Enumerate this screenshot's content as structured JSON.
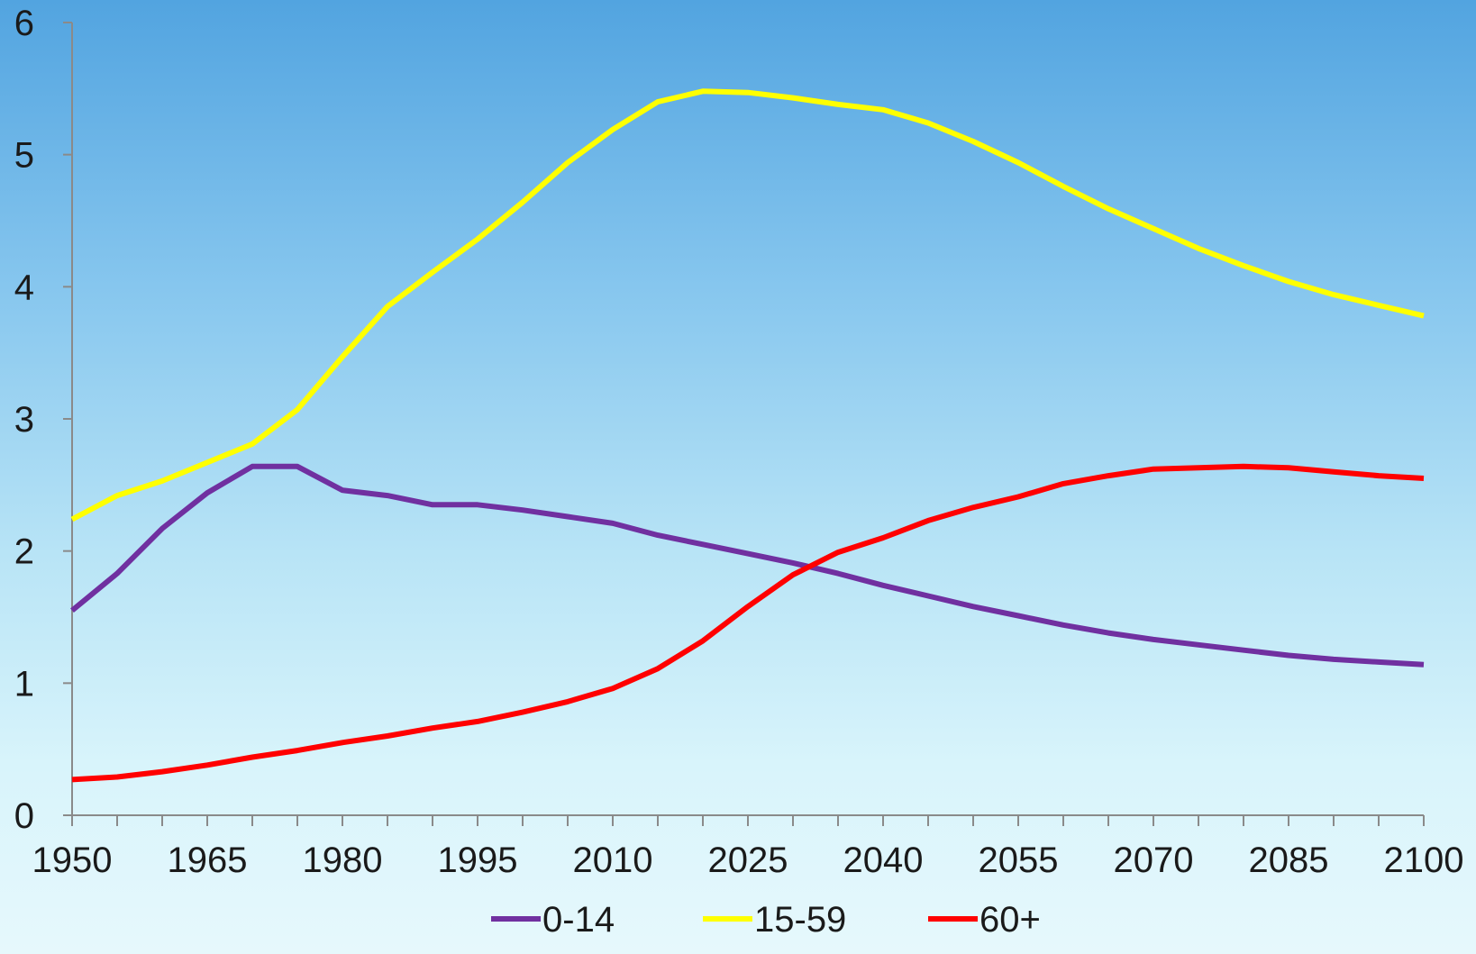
{
  "chart_data": {
    "type": "line",
    "title": "",
    "xlabel": "",
    "ylabel": "",
    "xlim": [
      1950,
      2100
    ],
    "ylim": [
      0,
      6
    ],
    "grid": false,
    "legend": "bottom",
    "x_ticks": [
      "1950",
      "1965",
      "1980",
      "1995",
      "2010",
      "2025",
      "2040",
      "2055",
      "2070",
      "2085",
      "2100"
    ],
    "y_ticks": [
      "0",
      "1",
      "2",
      "3",
      "4",
      "5",
      "6"
    ],
    "x": [
      1950,
      1955,
      1960,
      1965,
      1970,
      1975,
      1980,
      1985,
      1990,
      1995,
      2000,
      2005,
      2010,
      2015,
      2020,
      2025,
      2030,
      2035,
      2040,
      2045,
      2050,
      2055,
      2060,
      2065,
      2070,
      2075,
      2080,
      2085,
      2090,
      2095,
      2100
    ],
    "series": [
      {
        "name": "0-14",
        "color": "#7030a0",
        "values": [
          1.55,
          1.83,
          2.17,
          2.44,
          2.64,
          2.64,
          2.46,
          2.42,
          2.35,
          2.35,
          2.31,
          2.26,
          2.21,
          2.12,
          2.05,
          1.98,
          1.91,
          1.83,
          1.74,
          1.66,
          1.58,
          1.51,
          1.44,
          1.38,
          1.33,
          1.29,
          1.25,
          1.21,
          1.18,
          1.16,
          1.14
        ]
      },
      {
        "name": "15-59",
        "color": "#ffff00",
        "values": [
          2.24,
          2.42,
          2.53,
          2.67,
          2.81,
          3.07,
          3.47,
          3.85,
          4.11,
          4.36,
          4.64,
          4.94,
          5.19,
          5.4,
          5.48,
          5.47,
          5.43,
          5.38,
          5.34,
          5.24,
          5.1,
          4.94,
          4.76,
          4.59,
          4.44,
          4.29,
          4.16,
          4.04,
          3.94,
          3.86,
          3.78
        ]
      },
      {
        "name": "60+",
        "color": "#ff0000",
        "values": [
          0.27,
          0.29,
          0.33,
          0.38,
          0.44,
          0.49,
          0.55,
          0.6,
          0.66,
          0.71,
          0.78,
          0.86,
          0.96,
          1.11,
          1.32,
          1.58,
          1.82,
          1.99,
          2.1,
          2.23,
          2.33,
          2.41,
          2.51,
          2.57,
          2.62,
          2.63,
          2.64,
          2.63,
          2.6,
          2.57,
          2.55
        ]
      }
    ]
  }
}
